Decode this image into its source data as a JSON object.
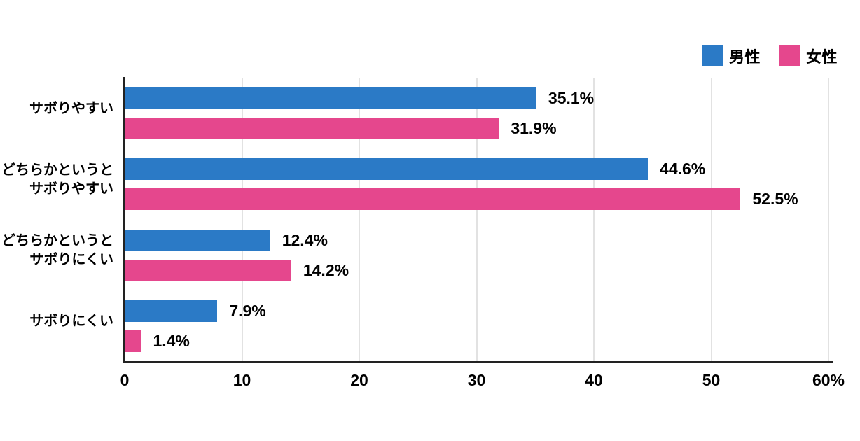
{
  "chart_data": {
    "type": "bar",
    "orientation": "horizontal",
    "title": "",
    "categories": [
      [
        "サボりやすい"
      ],
      [
        "どちらかというと",
        "サボりやすい"
      ],
      [
        "どちらかというと",
        "サボりにくい"
      ],
      [
        "サボりにくい"
      ]
    ],
    "series": [
      {
        "name": "男性",
        "color": "#2b7ac6",
        "values": [
          35.1,
          44.6,
          12.4,
          7.9
        ],
        "labels": [
          "35.1%",
          "44.6%",
          "12.4%",
          "7.9%"
        ]
      },
      {
        "name": "女性",
        "color": "#e5478d",
        "values": [
          31.9,
          52.5,
          14.2,
          1.4
        ],
        "labels": [
          "31.9%",
          "52.5%",
          "14.2%",
          "1.4%"
        ]
      }
    ],
    "xlabel": "",
    "ylabel": "",
    "xlim": [
      0,
      60
    ],
    "x_ticks": [
      0,
      10,
      20,
      30,
      40,
      50,
      60
    ],
    "x_tick_labels": [
      "0",
      "10",
      "20",
      "30",
      "40",
      "50",
      "60%"
    ],
    "grid": "vertical-only",
    "legend_position": "top-right",
    "axis_color": "#222222",
    "gridline_color": "#e2e2e2",
    "text_color": "#000000",
    "background_color": "#ffffff"
  }
}
